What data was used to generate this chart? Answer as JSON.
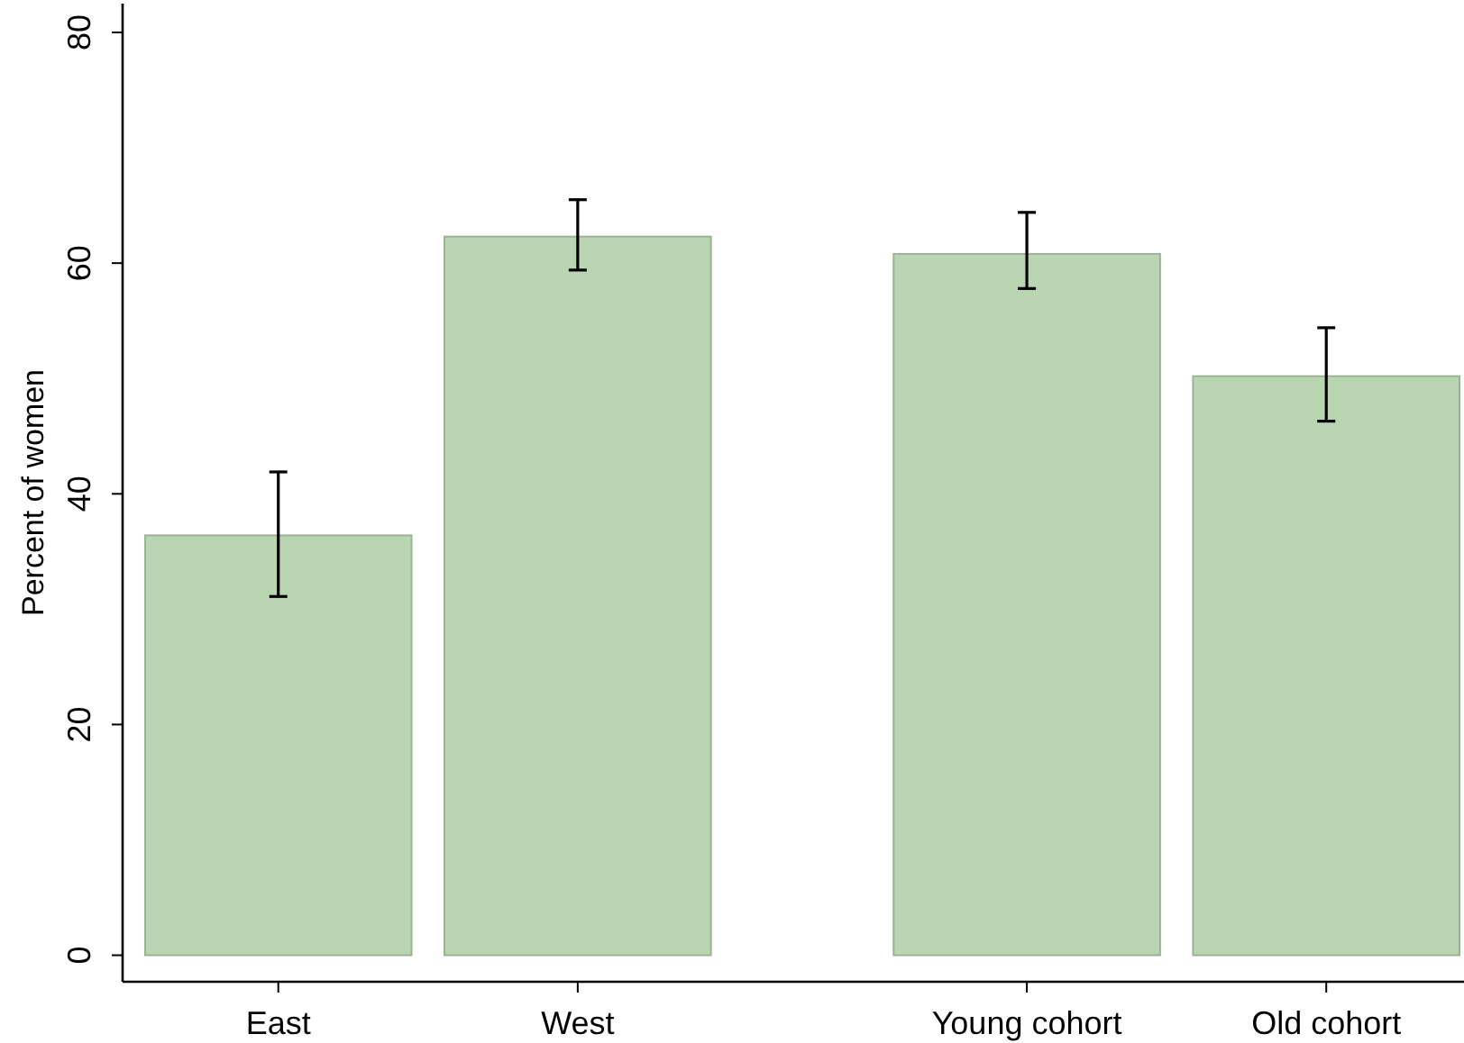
{
  "chart_data": {
    "type": "bar",
    "ylabel": "Percent of women",
    "categories": [
      "East",
      "West",
      null,
      "Young cohort",
      "Old cohort"
    ],
    "values": [
      36.4,
      62.3,
      null,
      60.8,
      50.2
    ],
    "errors": [
      [
        31.1,
        41.9
      ],
      [
        59.4,
        65.5
      ],
      null,
      [
        57.8,
        64.4
      ],
      [
        46.3,
        54.4
      ]
    ],
    "color": "#b9d5b2",
    "ylim": [
      -2.3,
      82.5
    ],
    "yticks": [
      0,
      20,
      40,
      60,
      80
    ],
    "grid": false
  }
}
